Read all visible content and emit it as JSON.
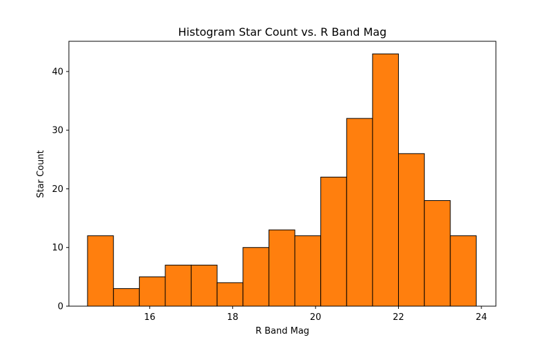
{
  "chart_data": {
    "type": "bar",
    "title": "Histogram Star Count vs. R Band Mag",
    "xlabel": "R Band Mag",
    "ylabel": "Star Count",
    "xlim": [
      14.05,
      24.35
    ],
    "ylim": [
      0,
      45.15
    ],
    "xticks": [
      16,
      18,
      20,
      22,
      24
    ],
    "yticks": [
      0,
      10,
      20,
      30,
      40
    ],
    "bin_edges": [
      14.5,
      15.125,
      15.75,
      16.375,
      17.0,
      17.625,
      18.25,
      18.875,
      19.5,
      20.125,
      20.75,
      21.375,
      22.0,
      22.625,
      23.25,
      23.875
    ],
    "values": [
      12,
      3,
      5,
      7,
      7,
      4,
      10,
      13,
      12,
      22,
      32,
      43,
      26,
      18,
      12
    ],
    "bar_color": "#ff7f0e",
    "edge_color": "#000000",
    "grid": false
  }
}
